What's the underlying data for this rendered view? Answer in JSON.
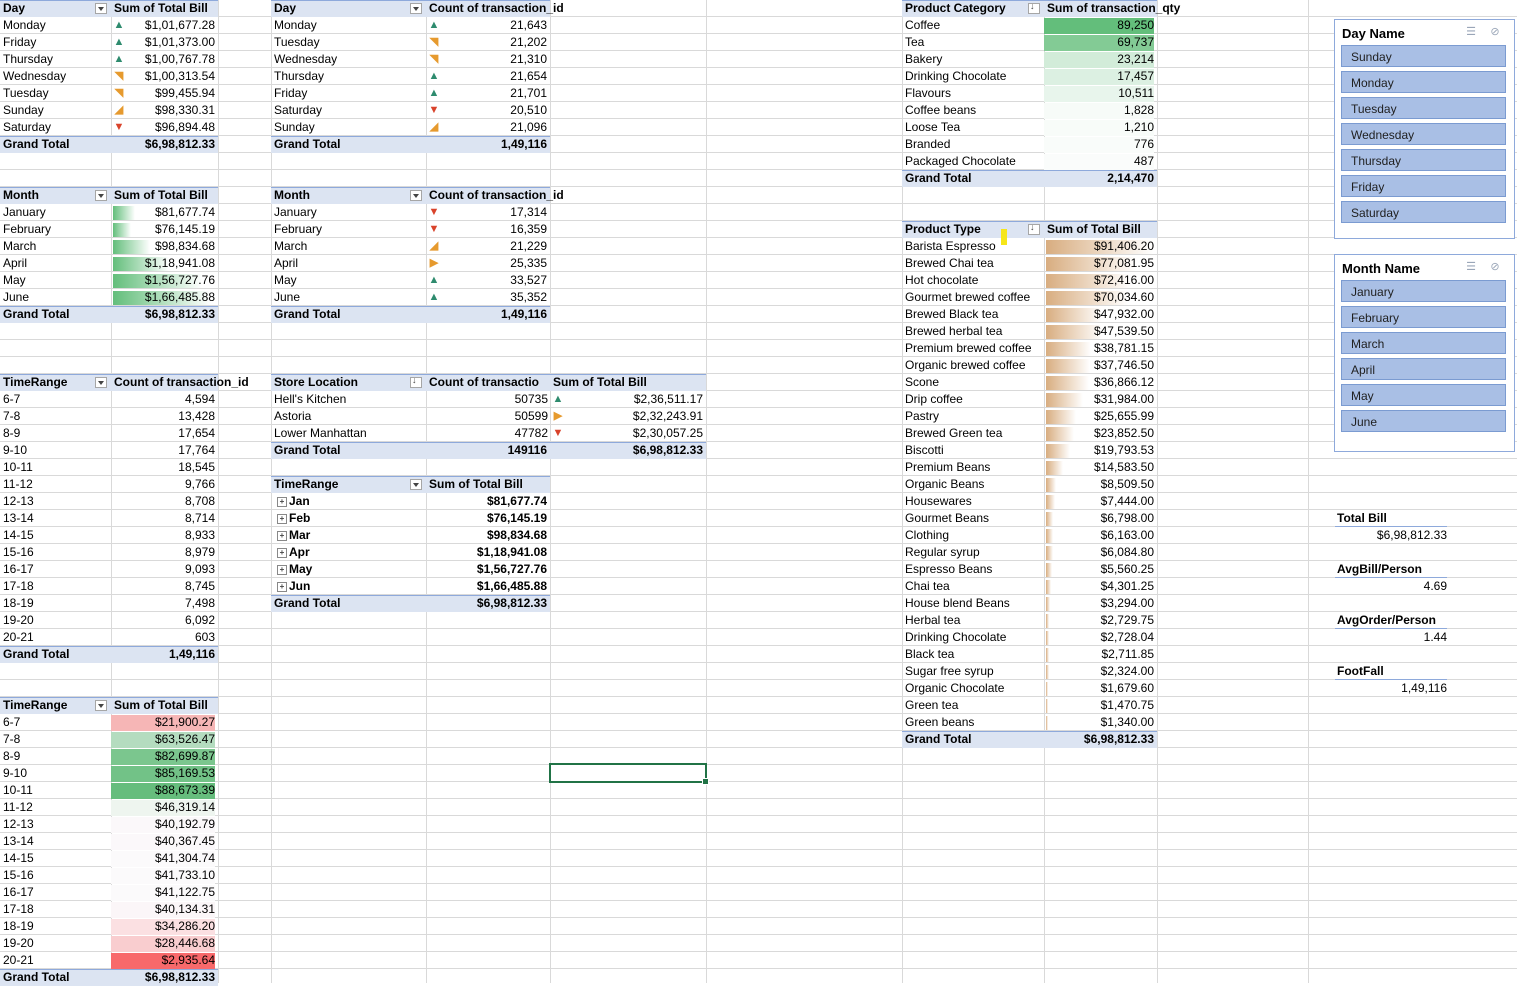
{
  "pivot_day_bill": {
    "headers": [
      "Day",
      "Sum of Total Bill"
    ],
    "rows": [
      {
        "label": "Monday",
        "value": "$1,01,677.28",
        "trend": "up"
      },
      {
        "label": "Friday",
        "value": "$1,01,373.00",
        "trend": "up"
      },
      {
        "label": "Thursday",
        "value": "$1,00,767.78",
        "trend": "up"
      },
      {
        "label": "Wednesday",
        "value": "$1,00,313.54",
        "trend": "up-right"
      },
      {
        "label": "Tuesday",
        "value": "$99,455.94",
        "trend": "up-right"
      },
      {
        "label": "Sunday",
        "value": "$98,330.31",
        "trend": "down-right"
      },
      {
        "label": "Saturday",
        "value": "$96,894.48",
        "trend": "down"
      }
    ],
    "total_label": "Grand Total",
    "total_value": "$6,98,812.33"
  },
  "pivot_day_count": {
    "headers": [
      "Day",
      "Count of transaction_id"
    ],
    "rows": [
      {
        "label": "Monday",
        "value": "21,643",
        "trend": "up"
      },
      {
        "label": "Tuesday",
        "value": "21,202",
        "trend": "up-right"
      },
      {
        "label": "Wednesday",
        "value": "21,310",
        "trend": "up-right"
      },
      {
        "label": "Thursday",
        "value": "21,654",
        "trend": "up"
      },
      {
        "label": "Friday",
        "value": "21,701",
        "trend": "up"
      },
      {
        "label": "Saturday",
        "value": "20,510",
        "trend": "down"
      },
      {
        "label": "Sunday",
        "value": "21,096",
        "trend": "down-right"
      }
    ],
    "total_label": "Grand Total",
    "total_value": "1,49,116"
  },
  "pivot_month_bill": {
    "headers": [
      "Month",
      "Sum of Total Bill"
    ],
    "rows": [
      {
        "label": "January",
        "value": "$81,677.74",
        "fill": 0.22
      },
      {
        "label": "February",
        "value": "$76,145.19",
        "fill": 0.18
      },
      {
        "label": "March",
        "value": "$98,834.68",
        "fill": 0.37
      },
      {
        "label": "April",
        "value": "$1,18,941.08",
        "fill": 0.55
      },
      {
        "label": "May",
        "value": "$1,56,727.76",
        "fill": 0.88
      },
      {
        "label": "June",
        "value": "$1,66,485.88",
        "fill": 0.97
      }
    ],
    "total_label": "Grand Total",
    "total_value": "$6,98,812.33"
  },
  "pivot_month_count": {
    "headers": [
      "Month",
      "Count of transaction_id"
    ],
    "rows": [
      {
        "label": "January",
        "value": "17,314",
        "trend": "down"
      },
      {
        "label": "February",
        "value": "16,359",
        "trend": "down"
      },
      {
        "label": "March",
        "value": "21,229",
        "trend": "down-right"
      },
      {
        "label": "April",
        "value": "25,335",
        "trend": "right"
      },
      {
        "label": "May",
        "value": "33,527",
        "trend": "up"
      },
      {
        "label": "June",
        "value": "35,352",
        "trend": "up"
      }
    ],
    "total_label": "Grand Total",
    "total_value": "1,49,116"
  },
  "pivot_timerange_count": {
    "headers": [
      "TimeRange",
      "Count of transaction_id"
    ],
    "rows": [
      {
        "label": "6-7",
        "value": "4,594"
      },
      {
        "label": "7-8",
        "value": "13,428"
      },
      {
        "label": "8-9",
        "value": "17,654"
      },
      {
        "label": "9-10",
        "value": "17,764"
      },
      {
        "label": "10-11",
        "value": "18,545"
      },
      {
        "label": "11-12",
        "value": "9,766"
      },
      {
        "label": "12-13",
        "value": "8,708"
      },
      {
        "label": "13-14",
        "value": "8,714"
      },
      {
        "label": "14-15",
        "value": "8,933"
      },
      {
        "label": "15-16",
        "value": "8,979"
      },
      {
        "label": "16-17",
        "value": "9,093"
      },
      {
        "label": "17-18",
        "value": "8,745"
      },
      {
        "label": "18-19",
        "value": "7,498"
      },
      {
        "label": "19-20",
        "value": "6,092"
      },
      {
        "label": "20-21",
        "value": "603"
      }
    ],
    "total_label": "Grand Total",
    "total_value": "1,49,116"
  },
  "pivot_timerange_bill": {
    "headers": [
      "TimeRange",
      "Sum of Total Bill"
    ],
    "rows": [
      {
        "label": "6-7",
        "value": "$21,900.27",
        "color": "#f6b6b6"
      },
      {
        "label": "7-8",
        "value": "$63,526.47",
        "color": "#b4dcbf"
      },
      {
        "label": "8-9",
        "value": "$82,699.87",
        "color": "#7bc68e"
      },
      {
        "label": "9-10",
        "value": "$85,169.53",
        "color": "#72c287"
      },
      {
        "label": "10-11",
        "value": "$88,673.39",
        "color": "#66bd7d"
      },
      {
        "label": "11-12",
        "value": "$46,319.14",
        "color": "#eef5ef"
      },
      {
        "label": "12-13",
        "value": "$40,192.79",
        "color": "#fbf8fa"
      },
      {
        "label": "13-14",
        "value": "$40,367.45",
        "color": "#fbf8fa"
      },
      {
        "label": "14-15",
        "value": "$41,304.74",
        "color": "#fbfafb"
      },
      {
        "label": "15-16",
        "value": "$41,733.10",
        "color": "#fbfafb"
      },
      {
        "label": "16-17",
        "value": "$41,122.75",
        "color": "#fbfafb"
      },
      {
        "label": "17-18",
        "value": "$40,134.31",
        "color": "#fbf6f8"
      },
      {
        "label": "18-19",
        "value": "$34,286.20",
        "color": "#fbe0e2"
      },
      {
        "label": "19-20",
        "value": "$28,446.68",
        "color": "#f9cdcf"
      },
      {
        "label": "20-21",
        "value": "$2,935.64",
        "color": "#f8696b"
      }
    ],
    "total_label": "Grand Total",
    "total_value": "$6,98,812.33"
  },
  "pivot_store": {
    "headers": [
      "Store Location",
      "Count of transactio",
      "Sum of Total Bill"
    ],
    "rows": [
      {
        "label": "Hell's Kitchen",
        "count": "50735",
        "trend": "up",
        "bill": "$2,36,511.17"
      },
      {
        "label": "Astoria",
        "count": "50599",
        "trend": "right",
        "bill": "$2,32,243.91"
      },
      {
        "label": "Lower Manhattan",
        "count": "47782",
        "trend": "down",
        "bill": "$2,30,057.25"
      }
    ],
    "total_label": "Grand Total",
    "total_count": "149116",
    "total_bill": "$6,98,812.33"
  },
  "pivot_timerange_month": {
    "headers": [
      "TimeRange",
      "Sum of Total Bill"
    ],
    "rows": [
      {
        "label": "Jan",
        "value": "$81,677.74"
      },
      {
        "label": "Feb",
        "value": "$76,145.19"
      },
      {
        "label": "Mar",
        "value": "$98,834.68"
      },
      {
        "label": "Apr",
        "value": "$1,18,941.08"
      },
      {
        "label": "May",
        "value": "$1,56,727.76"
      },
      {
        "label": "Jun",
        "value": "$1,66,485.88"
      }
    ],
    "total_label": "Grand Total",
    "total_value": "$6,98,812.33"
  },
  "pivot_category": {
    "headers": [
      "Product Category",
      "Sum of transaction_qty"
    ],
    "rows": [
      {
        "label": "Coffee",
        "value": "89,250",
        "color": "#63be7b"
      },
      {
        "label": "Tea",
        "value": "69,737",
        "color": "#83cb95"
      },
      {
        "label": "Bakery",
        "value": "23,214",
        "color": "#d2ecd9"
      },
      {
        "label": "Drinking Chocolate",
        "value": "17,457",
        "color": "#dcf0e2"
      },
      {
        "label": "Flavours",
        "value": "10,511",
        "color": "#e8f5ec"
      },
      {
        "label": "Coffee beans",
        "value": "1,828",
        "color": "#f7fbf8"
      },
      {
        "label": "Loose Tea",
        "value": "1,210",
        "color": "#f8fcf9"
      },
      {
        "label": "Branded",
        "value": "776",
        "color": "#f9fcfa"
      },
      {
        "label": "Packaged Chocolate",
        "value": "487",
        "color": "#fafcfb"
      }
    ],
    "total_label": "Grand Total",
    "total_value": "2,14,470"
  },
  "pivot_product_type": {
    "headers": [
      "Product Type",
      "Sum of Total Bill"
    ],
    "rows": [
      {
        "label": "Barista Espresso",
        "value": "$91,406.20",
        "fill": 1.0
      },
      {
        "label": "Brewed Chai tea",
        "value": "$77,081.95",
        "fill": 0.84
      },
      {
        "label": "Hot chocolate",
        "value": "$72,416.00",
        "fill": 0.79
      },
      {
        "label": "Gourmet brewed coffee",
        "value": "$70,034.60",
        "fill": 0.77
      },
      {
        "label": "Brewed Black tea",
        "value": "$47,932.00",
        "fill": 0.52
      },
      {
        "label": "Brewed herbal tea",
        "value": "$47,539.50",
        "fill": 0.52
      },
      {
        "label": "Premium brewed coffee",
        "value": "$38,781.15",
        "fill": 0.42
      },
      {
        "label": "Organic brewed coffee",
        "value": "$37,746.50",
        "fill": 0.41
      },
      {
        "label": "Scone",
        "value": "$36,866.12",
        "fill": 0.4
      },
      {
        "label": "Drip coffee",
        "value": "$31,984.00",
        "fill": 0.35
      },
      {
        "label": "Pastry",
        "value": "$25,655.99",
        "fill": 0.28
      },
      {
        "label": "Brewed Green tea",
        "value": "$23,852.50",
        "fill": 0.26
      },
      {
        "label": "Biscotti",
        "value": "$19,793.53",
        "fill": 0.22
      },
      {
        "label": "Premium Beans",
        "value": "$14,583.50",
        "fill": 0.16
      },
      {
        "label": "Organic Beans",
        "value": "$8,509.50",
        "fill": 0.09
      },
      {
        "label": "Housewares",
        "value": "$7,444.00",
        "fill": 0.08
      },
      {
        "label": "Gourmet Beans",
        "value": "$6,798.00",
        "fill": 0.07
      },
      {
        "label": "Clothing",
        "value": "$6,163.00",
        "fill": 0.07
      },
      {
        "label": "Regular syrup",
        "value": "$6,084.80",
        "fill": 0.07
      },
      {
        "label": "Espresso Beans",
        "value": "$5,560.25",
        "fill": 0.06
      },
      {
        "label": "Chai tea",
        "value": "$4,301.25",
        "fill": 0.05
      },
      {
        "label": "House blend Beans",
        "value": "$3,294.00",
        "fill": 0.04
      },
      {
        "label": "Herbal tea",
        "value": "$2,729.75",
        "fill": 0.03
      },
      {
        "label": "Drinking Chocolate",
        "value": "$2,728.04",
        "fill": 0.03
      },
      {
        "label": "Black tea",
        "value": "$2,711.85",
        "fill": 0.03
      },
      {
        "label": "Sugar free syrup",
        "value": "$2,324.00",
        "fill": 0.025
      },
      {
        "label": "Organic Chocolate",
        "value": "$1,679.60",
        "fill": 0.02
      },
      {
        "label": "Green tea",
        "value": "$1,470.75",
        "fill": 0.016
      },
      {
        "label": "Green beans",
        "value": "$1,340.00",
        "fill": 0.015
      }
    ],
    "total_label": "Grand Total",
    "total_value": "$6,98,812.33"
  },
  "slicer_day": {
    "title": "Day Name",
    "items": [
      "Sunday",
      "Monday",
      "Tuesday",
      "Wednesday",
      "Thursday",
      "Friday",
      "Saturday"
    ]
  },
  "slicer_month": {
    "title": "Month Name",
    "items": [
      "January",
      "February",
      "March",
      "April",
      "May",
      "June"
    ]
  },
  "kpis": [
    {
      "label": "Total Bill",
      "value": "$6,98,812.33"
    },
    {
      "label": "AvgBill/Person",
      "value": "4.69"
    },
    {
      "label": "AvgOrder/Person",
      "value": "1.44"
    },
    {
      "label": "FootFall",
      "value": "1,49,116"
    }
  ],
  "colors": {
    "header_bg": "#dce4f2",
    "trend_up": "#2e8b6e",
    "trend_down": "#d9432b",
    "trend_mid": "#e69a2e",
    "databar_green": "#63be7b",
    "databar_tan": "#d8ad80",
    "slicer_button": "#a9bfe5",
    "selection": "#217346"
  }
}
